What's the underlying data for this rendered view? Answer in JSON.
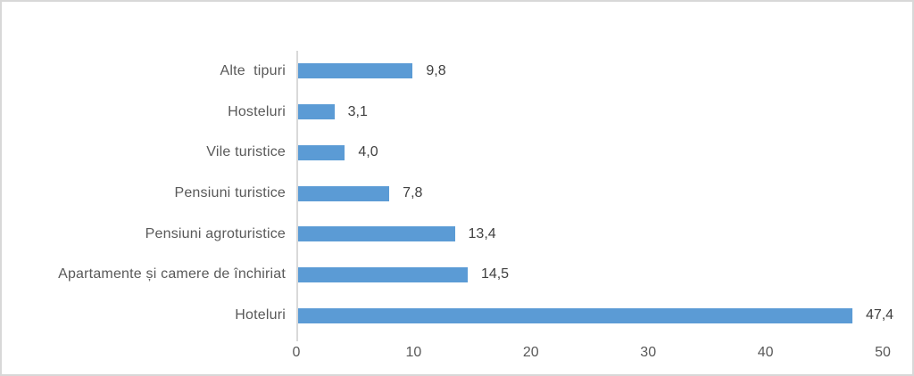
{
  "chart_data": {
    "type": "bar",
    "orientation": "horizontal",
    "title": "",
    "xlabel": "",
    "ylabel": "",
    "grid": false,
    "legend": null,
    "categories": [
      "Alte  tipuri",
      "Hosteluri",
      "Vile turistice",
      "Pensiuni turistice",
      "Pensiuni agroturistice",
      "Apartamente și camere de închiriat",
      "Hoteluri"
    ],
    "values": [
      9.8,
      3.1,
      4.0,
      7.8,
      13.4,
      14.5,
      47.4
    ],
    "value_labels": [
      "9,8",
      "3,1",
      "4,0",
      "7,8",
      "13,4",
      "14,5",
      "47,4"
    ],
    "xlim": [
      0,
      50
    ],
    "x_ticks": [
      0,
      10,
      20,
      30,
      40,
      50
    ],
    "x_tick_labels": [
      "0",
      "10",
      "20",
      "30",
      "40",
      "50"
    ],
    "colors": {
      "bar": "#5B9BD5",
      "axis_line": "#D9D9D9",
      "category_text": "#595959",
      "value_text": "#404040",
      "tick_text": "#595959",
      "frame_border": "#D8D8D8",
      "background": "#FFFFFF"
    }
  }
}
